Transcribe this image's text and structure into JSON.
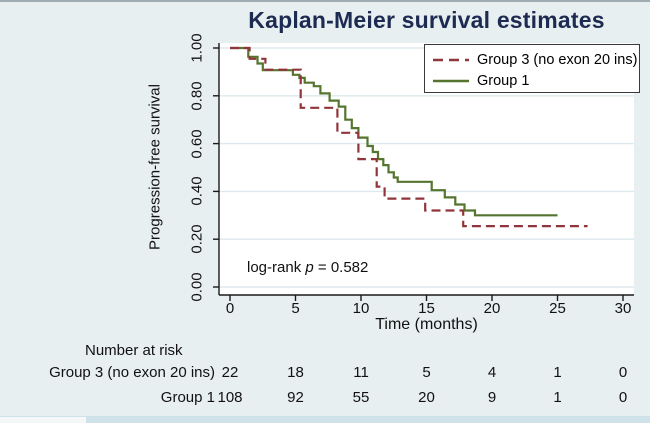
{
  "figure": {
    "background": "#e8eff1",
    "accent_colors": {
      "title_navy": "#1d2b52",
      "group3_maroon": "#90353B",
      "group1_green": "#55752F",
      "gridline": "#dde9ed",
      "axis": "#1a1a1a"
    }
  },
  "chart_data": {
    "type": "line",
    "subtype": "kaplan-meier-step",
    "title": "Kaplan-Meier survival estimates",
    "xlabel": "Time (months)",
    "ylabel": "Progression-free survival",
    "xlim": [
      0,
      30
    ],
    "ylim": [
      0,
      1
    ],
    "xticks": [
      0,
      5,
      10,
      15,
      20,
      25,
      30
    ],
    "yticks": [
      "0.00",
      "0.20",
      "0.40",
      "0.60",
      "0.80",
      "1.00"
    ],
    "grid": true,
    "legend_position": "top-right-inside",
    "annotation": {
      "text_prefix": "log-rank",
      "stat_symbol": "p",
      "stat_value": "= 0.582"
    },
    "series": [
      {
        "name": "Group 1",
        "color": "#55752F",
        "dash": false,
        "steps": [
          [
            0,
            1.0
          ],
          [
            1.4,
            0.963
          ],
          [
            2.1,
            0.935
          ],
          [
            2.5,
            0.907
          ],
          [
            4.8,
            0.888
          ],
          [
            5.3,
            0.875
          ],
          [
            5.7,
            0.855
          ],
          [
            6.4,
            0.84
          ],
          [
            6.9,
            0.81
          ],
          [
            7.6,
            0.78
          ],
          [
            8.3,
            0.755
          ],
          [
            8.8,
            0.7
          ],
          [
            9.3,
            0.665
          ],
          [
            9.8,
            0.625
          ],
          [
            10.5,
            0.59
          ],
          [
            10.9,
            0.565
          ],
          [
            11.3,
            0.535
          ],
          [
            11.7,
            0.51
          ],
          [
            12.1,
            0.48
          ],
          [
            12.5,
            0.458
          ],
          [
            12.8,
            0.44
          ],
          [
            15.4,
            0.405
          ],
          [
            16.4,
            0.375
          ],
          [
            17.2,
            0.345
          ],
          [
            17.9,
            0.32
          ],
          [
            18.7,
            0.3
          ]
        ],
        "end_time": 25.0
      },
      {
        "name": "Group 3 (no exon 20 ins)",
        "color": "#90353B",
        "dash": true,
        "steps": [
          [
            0,
            1.0
          ],
          [
            1.5,
            0.955
          ],
          [
            2.7,
            0.909
          ],
          [
            5.4,
            0.75
          ],
          [
            8.2,
            0.645
          ],
          [
            9.8,
            0.535
          ],
          [
            11.2,
            0.42
          ],
          [
            11.8,
            0.37
          ],
          [
            14.9,
            0.32
          ],
          [
            17.8,
            0.255
          ]
        ],
        "end_time": 27.3
      }
    ],
    "legend_order": [
      "Group 3 (no exon 20 ins)",
      "Group 1"
    ],
    "risk_table": {
      "header": "Number at risk",
      "times": [
        0,
        5,
        10,
        15,
        20,
        25,
        30
      ],
      "rows": [
        {
          "label": "Group 3 (no exon 20 ins)",
          "counts": [
            22,
            18,
            11,
            5,
            4,
            1,
            0
          ]
        },
        {
          "label": "Group 1",
          "counts": [
            108,
            92,
            55,
            20,
            9,
            1,
            0
          ]
        }
      ]
    }
  }
}
